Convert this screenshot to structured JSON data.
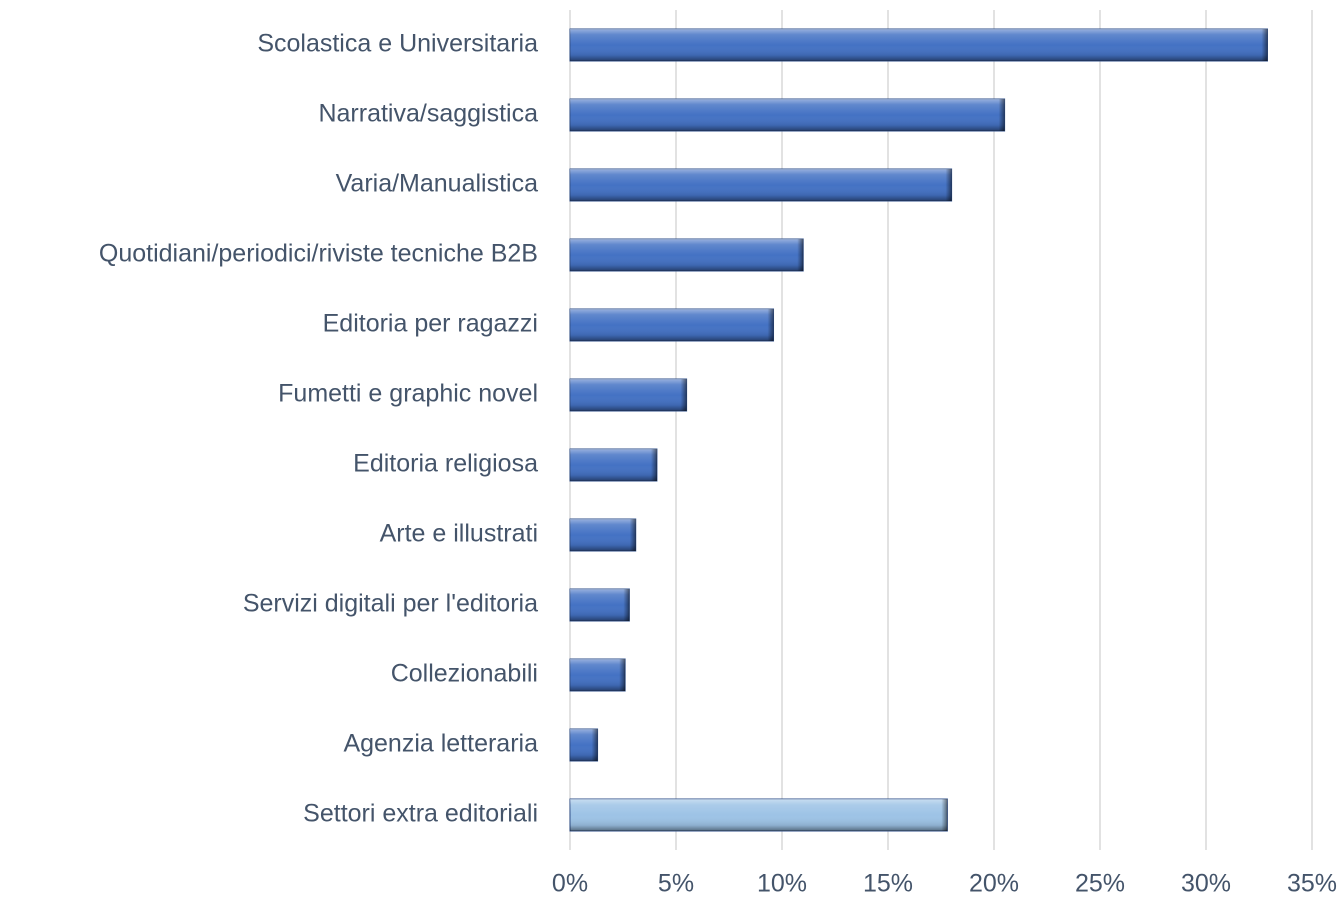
{
  "chart_data": {
    "type": "hbar",
    "categories": [
      "Scolastica e Universitaria",
      "Narrativa/saggistica",
      "Varia/Manualistica",
      "Quotidiani/periodici/riviste tecniche B2B",
      "Editoria per ragazzi",
      "Fumetti e graphic novel",
      "Editoria religiosa",
      "Arte e illustrati",
      "Servizi digitali per l'editoria",
      "Collezionabili",
      "Agenzia letteraria",
      "Settori extra editoriali"
    ],
    "values": [
      32.9,
      20.5,
      18.0,
      11.0,
      9.6,
      5.5,
      4.1,
      3.1,
      2.8,
      2.6,
      1.3,
      17.8
    ],
    "colors": [
      "#4472c4",
      "#4472c4",
      "#4472c4",
      "#4472c4",
      "#4472c4",
      "#4472c4",
      "#4472c4",
      "#4472c4",
      "#4472c4",
      "#4472c4",
      "#4472c4",
      "#9dc3e6"
    ],
    "xlim": [
      0,
      35
    ],
    "xticks": [
      {
        "value": 0,
        "label": "0%"
      },
      {
        "value": 5,
        "label": "5%"
      },
      {
        "value": 10,
        "label": "10%"
      },
      {
        "value": 15,
        "label": "15%"
      },
      {
        "value": 20,
        "label": "20%"
      },
      {
        "value": 25,
        "label": "25%"
      },
      {
        "value": 30,
        "label": "30%"
      },
      {
        "value": 35,
        "label": "35%"
      }
    ],
    "grid": true
  }
}
